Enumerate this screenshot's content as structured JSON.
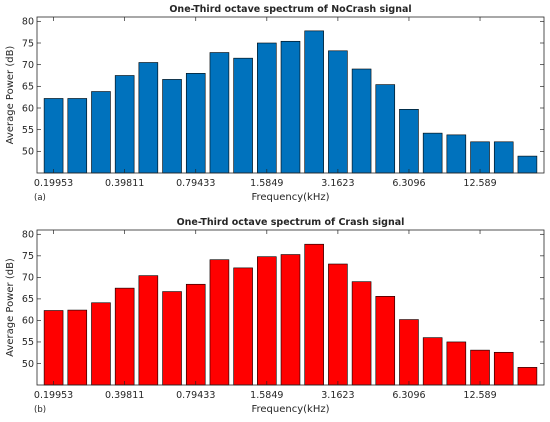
{
  "chart_data": [
    {
      "type": "bar",
      "title": "One-Third octave spectrum of NoCrash signal",
      "xlabel": "Frequency(kHz)",
      "ylabel": "Average Power (dB)",
      "panel_label": "(a)",
      "bar_color": "#0072BD",
      "ylim": [
        45,
        81
      ],
      "yticks": [
        50,
        55,
        60,
        65,
        70,
        75,
        80
      ],
      "ytick_labels": [
        "50",
        "55",
        "60",
        "65",
        "70",
        "75",
        "80"
      ],
      "xtick_labels": [
        "0.19953",
        "0.39811",
        "0.79433",
        "1.5849",
        "3.1623",
        "6.3096",
        "12.589"
      ],
      "xtick_bar_index": [
        0,
        3,
        6,
        9,
        12,
        15,
        18
      ],
      "values": [
        62.2,
        62.2,
        63.8,
        67.5,
        70.5,
        66.6,
        68.0,
        72.8,
        71.5,
        75.0,
        75.4,
        77.8,
        73.2,
        69.0,
        65.4,
        59.7,
        54.2,
        53.8,
        52.2,
        52.2,
        48.9
      ]
    },
    {
      "type": "bar",
      "title": "One-Third octave spectrum of Crash signal",
      "xlabel": "Frequency(kHz)",
      "ylabel": "Average Power (dB)",
      "panel_label": "(b)",
      "bar_color": "#FF0000",
      "ylim": [
        45,
        81
      ],
      "yticks": [
        50,
        55,
        60,
        65,
        70,
        75,
        80
      ],
      "ytick_labels": [
        "50",
        "55",
        "60",
        "65",
        "70",
        "75",
        "80"
      ],
      "xtick_labels": [
        "0.19953",
        "0.39811",
        "0.79433",
        "1.5849",
        "3.1623",
        "6.3096",
        "12.589"
      ],
      "xtick_bar_index": [
        0,
        3,
        6,
        9,
        12,
        15,
        18
      ],
      "values": [
        62.3,
        62.4,
        64.1,
        67.5,
        70.4,
        66.7,
        68.4,
        74.1,
        72.2,
        74.8,
        75.3,
        77.7,
        73.1,
        69.0,
        65.6,
        60.2,
        56.0,
        55.0,
        53.1,
        52.6,
        49.1
      ]
    }
  ]
}
